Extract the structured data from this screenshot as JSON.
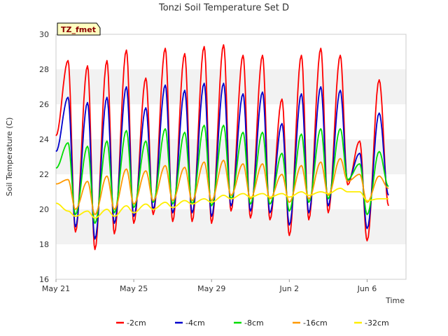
{
  "chart_data": {
    "type": "line",
    "title": "Tonzi Soil Temperature Set D",
    "xlabel": "Time",
    "ylabel": "Soil Temperature (C)",
    "tag_label": "TZ_fmet",
    "x_unit": "days",
    "x_ticks": [
      {
        "x": 0,
        "label": "May 21"
      },
      {
        "x": 4,
        "label": "May 25"
      },
      {
        "x": 8,
        "label": "May 29"
      },
      {
        "x": 12,
        "label": "Jun 2"
      },
      {
        "x": 16,
        "label": "Jun 6"
      }
    ],
    "xlim": [
      0,
      18
    ],
    "ylim": [
      16,
      30
    ],
    "y_ticks": [
      16,
      18,
      20,
      22,
      24,
      26,
      28,
      30
    ],
    "grid": "horizontal bands",
    "legend_position": "bottom",
    "series": [
      {
        "name": "-2cm",
        "color": "#ff0000",
        "peaks": [
          28.5,
          28.2,
          28.5,
          29.1,
          27.5,
          29.2,
          28.9,
          29.3,
          29.4,
          28.8,
          28.8,
          26.3,
          28.8,
          29.2,
          28.8,
          23.9,
          27.4
        ],
        "troughs": [
          18.7,
          17.7,
          18.6,
          19.2,
          19.7,
          19.3,
          19.3,
          19.2,
          19.9,
          19.5,
          19.4,
          18.5,
          19.4,
          19.8,
          21.4,
          18.2
        ],
        "end_value": 20.2
      },
      {
        "name": "-4cm",
        "color": "#0000cc",
        "peaks": [
          26.4,
          26.1,
          26.4,
          27.0,
          25.8,
          27.1,
          26.8,
          27.2,
          27.2,
          26.6,
          26.7,
          24.9,
          26.6,
          27.0,
          26.8,
          23.2,
          25.5
        ],
        "troughs": [
          19.0,
          18.3,
          19.2,
          19.6,
          20.0,
          19.8,
          19.8,
          19.6,
          20.2,
          19.9,
          19.8,
          19.1,
          19.8,
          20.2,
          21.6,
          18.9
        ],
        "end_value": 20.8
      },
      {
        "name": "-8cm",
        "color": "#00dd00",
        "peaks": [
          23.8,
          23.6,
          23.9,
          24.5,
          23.9,
          24.6,
          24.4,
          24.8,
          24.8,
          24.4,
          24.4,
          23.2,
          24.3,
          24.6,
          24.6,
          22.6,
          23.3
        ],
        "troughs": [
          19.7,
          19.2,
          19.8,
          20.1,
          20.4,
          20.3,
          20.3,
          20.2,
          20.6,
          20.3,
          20.3,
          19.9,
          20.4,
          20.6,
          21.7,
          19.7
        ],
        "end_value": 21.3
      },
      {
        "name": "-16cm",
        "color": "#ff9900",
        "peaks": [
          21.7,
          21.6,
          21.9,
          22.3,
          22.2,
          22.5,
          22.4,
          22.7,
          22.8,
          22.6,
          22.6,
          22.0,
          22.5,
          22.7,
          22.9,
          22.0,
          21.9
        ],
        "troughs": [
          20.0,
          19.7,
          20.0,
          20.3,
          20.5,
          20.5,
          20.5,
          20.5,
          20.8,
          20.6,
          20.6,
          20.4,
          20.6,
          20.8,
          21.6,
          20.4
        ],
        "end_value": 21.2
      },
      {
        "name": "-32cm",
        "color": "#ffee00",
        "peaks": [
          19.9,
          19.9,
          20.0,
          20.2,
          20.3,
          20.4,
          20.5,
          20.6,
          20.8,
          20.9,
          20.9,
          20.9,
          21.0,
          21.0,
          21.2,
          21.0,
          20.6
        ],
        "troughs": [
          19.6,
          19.5,
          19.6,
          19.8,
          20.0,
          20.1,
          20.3,
          20.4,
          20.6,
          20.7,
          20.7,
          20.7,
          20.8,
          20.9,
          21.0,
          20.5
        ],
        "end_value": 20.6
      }
    ]
  }
}
